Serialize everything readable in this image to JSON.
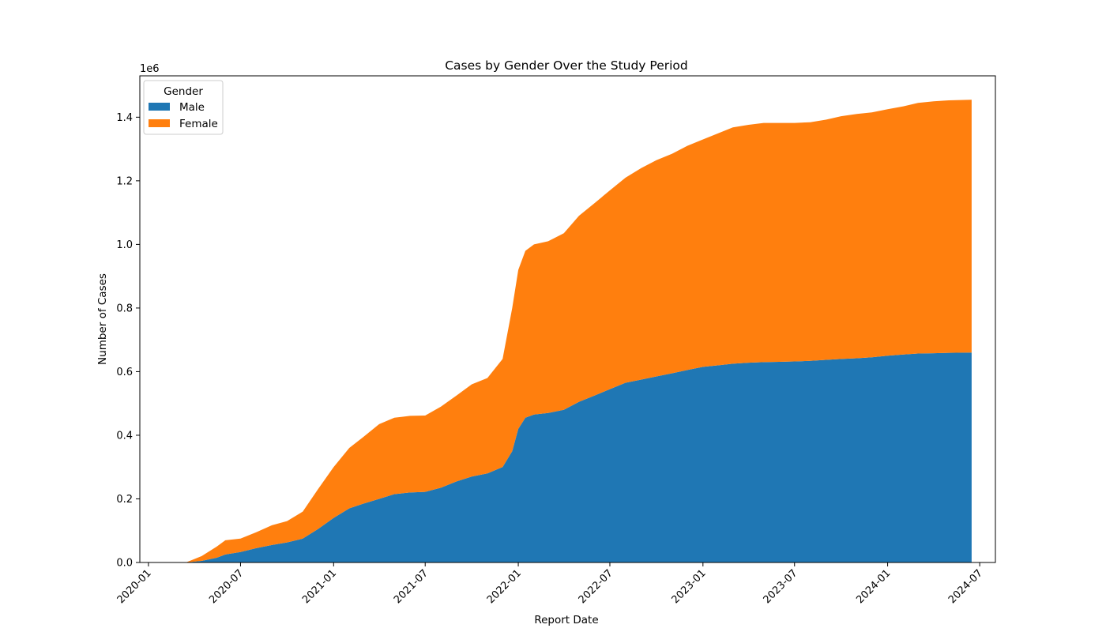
{
  "chart_data": {
    "type": "area",
    "stacked": true,
    "title": "Cases by Gender Over the Study Period",
    "xlabel": "Report Date",
    "ylabel": "Number of Cases",
    "y_offset_label": "1e6",
    "xlim": [
      "2019-12-15",
      "2024-08-01"
    ],
    "ylim": [
      0,
      1.53
    ],
    "x_ticks": [
      "2020-01",
      "2020-07",
      "2021-01",
      "2021-07",
      "2022-01",
      "2022-07",
      "2023-01",
      "2023-07",
      "2024-01",
      "2024-07"
    ],
    "y_ticks": [
      "0.0",
      "0.2",
      "0.4",
      "0.6",
      "0.8",
      "1.0",
      "1.2",
      "1.4"
    ],
    "grid": false,
    "legend": {
      "title": "Gender",
      "position": "top-left"
    },
    "x": [
      "2020-03-15",
      "2020-04-15",
      "2020-05-15",
      "2020-06-01",
      "2020-07-01",
      "2020-08-01",
      "2020-09-01",
      "2020-10-01",
      "2020-11-01",
      "2020-12-01",
      "2021-01-01",
      "2021-02-01",
      "2021-03-01",
      "2021-04-01",
      "2021-05-01",
      "2021-06-01",
      "2021-07-01",
      "2021-08-01",
      "2021-09-01",
      "2021-10-01",
      "2021-11-01",
      "2021-12-01",
      "2021-12-20",
      "2022-01-01",
      "2022-01-15",
      "2022-02-01",
      "2022-03-01",
      "2022-04-01",
      "2022-05-01",
      "2022-06-01",
      "2022-07-01",
      "2022-08-01",
      "2022-09-01",
      "2022-10-01",
      "2022-11-01",
      "2022-12-01",
      "2023-01-01",
      "2023-02-01",
      "2023-03-01",
      "2023-04-01",
      "2023-05-01",
      "2023-06-01",
      "2023-07-01",
      "2023-08-01",
      "2023-09-01",
      "2023-10-01",
      "2023-11-01",
      "2023-12-01",
      "2024-01-01",
      "2024-02-01",
      "2024-03-01",
      "2024-04-01",
      "2024-05-01",
      "2024-06-15"
    ],
    "series": [
      {
        "name": "Male",
        "color": "#1f77b4",
        "values": [
          0.0,
          0.005,
          0.015,
          0.025,
          0.033,
          0.045,
          0.055,
          0.063,
          0.075,
          0.105,
          0.14,
          0.17,
          0.185,
          0.2,
          0.215,
          0.22,
          0.222,
          0.235,
          0.255,
          0.27,
          0.28,
          0.3,
          0.35,
          0.42,
          0.455,
          0.465,
          0.47,
          0.48,
          0.505,
          0.525,
          0.545,
          0.565,
          0.575,
          0.585,
          0.595,
          0.605,
          0.615,
          0.62,
          0.625,
          0.628,
          0.63,
          0.631,
          0.632,
          0.634,
          0.637,
          0.64,
          0.642,
          0.645,
          0.65,
          0.654,
          0.657,
          0.658,
          0.659,
          0.66
        ]
      },
      {
        "name": "Female",
        "color": "#ff7f0e",
        "values": [
          0.0,
          0.015,
          0.035,
          0.045,
          0.042,
          0.05,
          0.062,
          0.067,
          0.085,
          0.125,
          0.16,
          0.19,
          0.21,
          0.235,
          0.24,
          0.241,
          0.24,
          0.255,
          0.27,
          0.29,
          0.3,
          0.34,
          0.45,
          0.5,
          0.525,
          0.535,
          0.54,
          0.555,
          0.585,
          0.605,
          0.625,
          0.645,
          0.665,
          0.68,
          0.69,
          0.705,
          0.715,
          0.73,
          0.743,
          0.748,
          0.752,
          0.751,
          0.75,
          0.75,
          0.755,
          0.763,
          0.768,
          0.77,
          0.775,
          0.78,
          0.788,
          0.792,
          0.794,
          0.795
        ]
      }
    ]
  }
}
